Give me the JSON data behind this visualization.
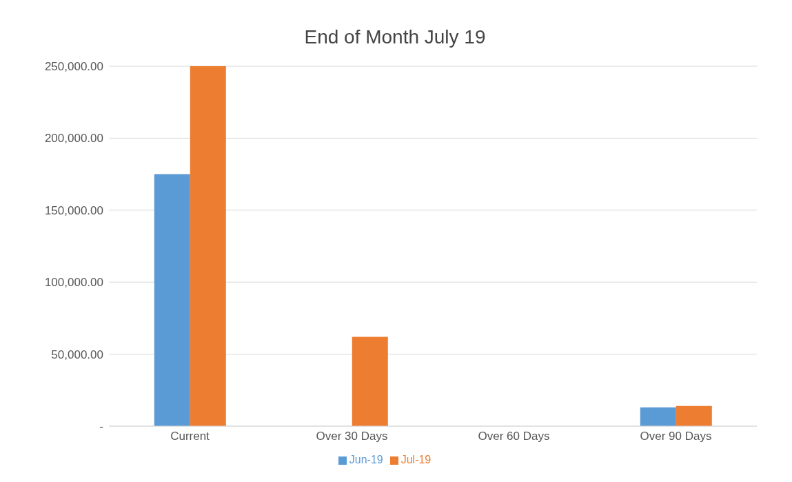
{
  "chart_data": {
    "type": "bar",
    "title": "End of Month July 19",
    "categories": [
      "Current",
      "Over 30 Days",
      "Over 60 Days",
      "Over 90 Days"
    ],
    "series": [
      {
        "name": "Jun-19",
        "color": "#5b9bd5",
        "values": [
          175000,
          0,
          0,
          13000
        ]
      },
      {
        "name": "Jul-19",
        "color": "#ed7d31",
        "values": [
          250000,
          62000,
          0,
          14000
        ]
      }
    ],
    "ylim": [
      0,
      250000
    ],
    "yticks": [
      {
        "value": 0,
        "label": "-"
      },
      {
        "value": 50000,
        "label": "50,000.00"
      },
      {
        "value": 100000,
        "label": "100,000.00"
      },
      {
        "value": 150000,
        "label": "150,000.00"
      },
      {
        "value": 200000,
        "label": "200,000.00"
      },
      {
        "value": 250000,
        "label": "250,000.00"
      }
    ],
    "grid": "y",
    "legend": "bottom"
  }
}
